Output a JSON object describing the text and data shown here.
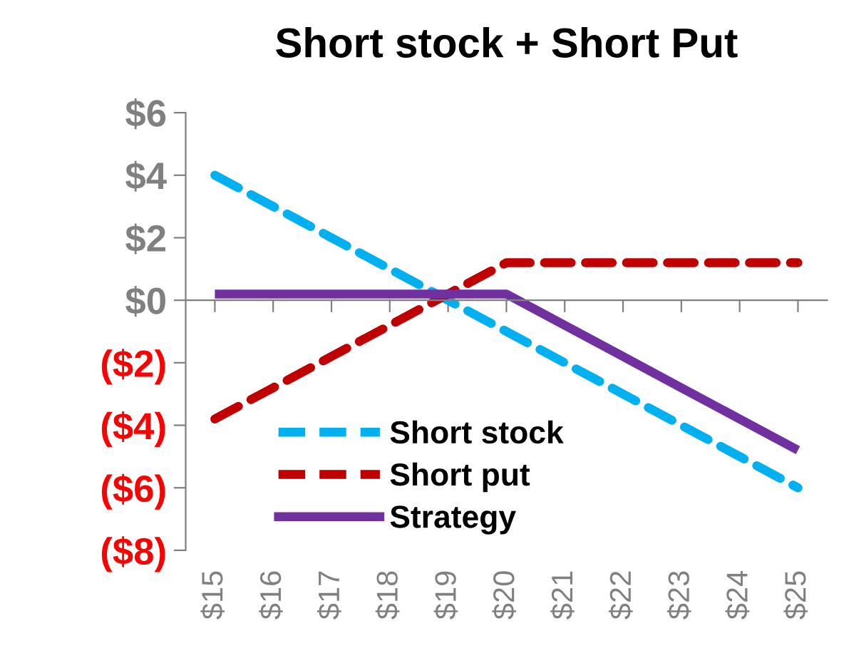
{
  "chart_data": {
    "type": "line",
    "title": "Short stock + Short Put",
    "categories": [
      "$15",
      "$16",
      "$17",
      "$18",
      "$19",
      "$20",
      "$21",
      "$22",
      "$23",
      "$24",
      "$25"
    ],
    "series": [
      {
        "name": "Short stock",
        "color": "#00b0f0",
        "line_style": "dashed",
        "values": [
          4,
          3,
          2,
          1,
          0,
          -1,
          -2,
          -3,
          -4,
          -5,
          -6
        ]
      },
      {
        "name": "Short put",
        "color": "#c00000",
        "line_style": "dashed",
        "values": [
          -3.8,
          -2.8,
          -1.8,
          -0.8,
          0.2,
          1.2,
          1.2,
          1.2,
          1.2,
          1.2,
          1.2
        ]
      },
      {
        "name": "Strategy",
        "color": "#7030a0",
        "line_style": "solid",
        "values": [
          0.2,
          0.2,
          0.2,
          0.2,
          0.2,
          0.2,
          -0.8,
          -1.8,
          -2.8,
          -3.8,
          -4.8
        ]
      }
    ],
    "ylim": [
      -8,
      6
    ],
    "yticks": [
      {
        "value": 6,
        "label": "$6"
      },
      {
        "value": 4,
        "label": "$4"
      },
      {
        "value": 2,
        "label": "$2"
      },
      {
        "value": 0,
        "label": "$0"
      },
      {
        "value": -2,
        "label": "($2)"
      },
      {
        "value": -4,
        "label": "($4)"
      },
      {
        "value": -6,
        "label": "($6)"
      },
      {
        "value": -8,
        "label": "($8)"
      }
    ],
    "legend": "bottom",
    "marker": "none"
  }
}
